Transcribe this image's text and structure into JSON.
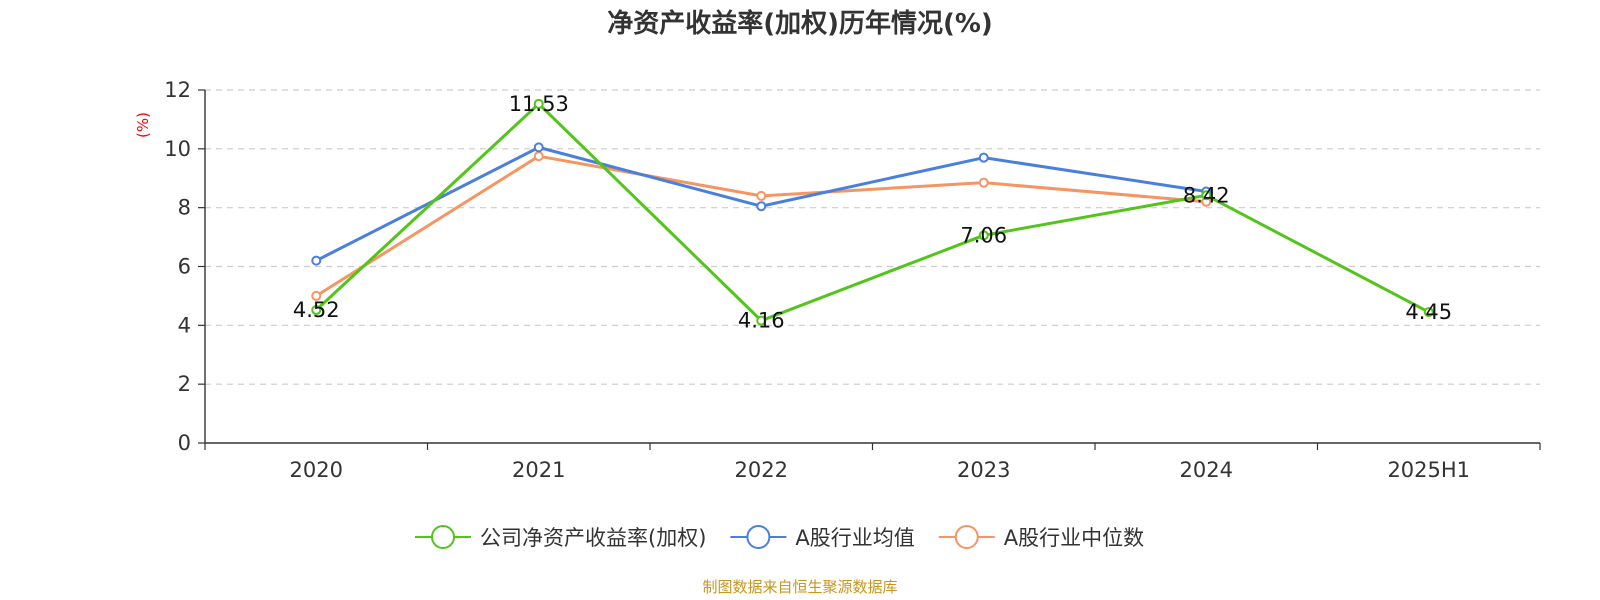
{
  "chart_data": {
    "type": "line",
    "title": "净资产收益率(加权)历年情况(%)",
    "ylabel": "(%)",
    "categories": [
      "2020",
      "2021",
      "2022",
      "2023",
      "2024",
      "2025H1"
    ],
    "ylim": [
      0,
      12
    ],
    "yticks": [
      0,
      2,
      4,
      6,
      8,
      10,
      12
    ],
    "grid": true,
    "legend_position": "bottom",
    "series": [
      {
        "name": "公司净资产收益率(加权)",
        "color": "#52c41a",
        "values": [
          4.52,
          11.53,
          4.16,
          7.06,
          8.42,
          4.45
        ],
        "labels": [
          "4.52",
          "11.53",
          "4.16",
          "7.06",
          "8.42",
          "4.45"
        ]
      },
      {
        "name": "A股行业均值",
        "color": "#4a7fdc",
        "values": [
          6.2,
          10.05,
          8.05,
          9.7,
          8.55,
          null
        ]
      },
      {
        "name": "A股行业中位数",
        "color": "#f59563",
        "values": [
          5.0,
          9.75,
          8.4,
          8.85,
          8.2,
          null
        ]
      }
    ],
    "source": "制图数据来自恒生聚源数据库"
  }
}
